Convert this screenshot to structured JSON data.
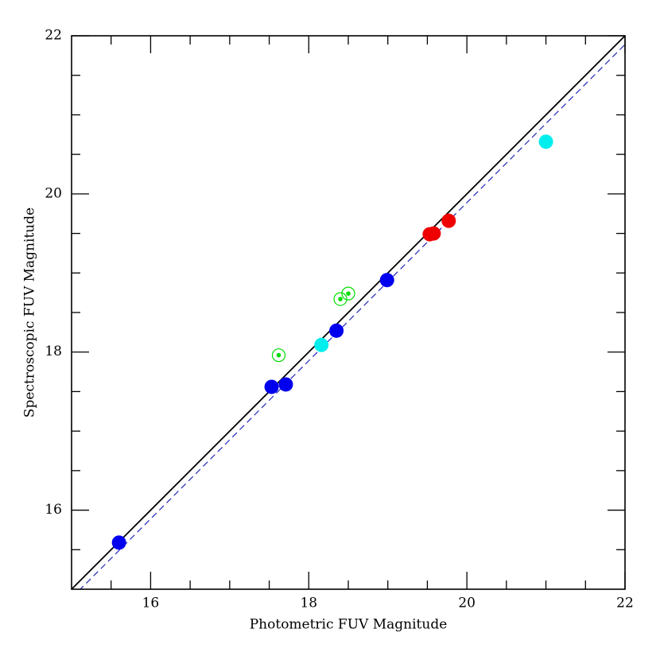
{
  "chart_data": {
    "type": "scatter",
    "x_label": "Photometric FUV Magnitude",
    "y_label": "Spectroscopic FUV Magnitude",
    "xlim": [
      15,
      22
    ],
    "ylim": [
      15,
      22
    ],
    "xticks": [
      16,
      18,
      20,
      22
    ],
    "yticks": [
      16,
      18,
      20,
      22
    ],
    "xminorticks": [
      15.5,
      16.5,
      17,
      17.5,
      18.5,
      19,
      19.5,
      20.5,
      21,
      21.5
    ],
    "yminorticks": [
      15.5,
      16.5,
      17,
      17.5,
      18.5,
      19,
      19.5,
      20.5,
      21,
      21.5
    ],
    "reference_lines": [
      {
        "offset": 0,
        "color": "#000000",
        "dashed": false
      },
      {
        "offset": -0.11,
        "color": "#2222bb",
        "dashed": true
      }
    ],
    "series": [
      {
        "color": "#0000ee",
        "style": "filled",
        "x": [
          15.6,
          17.53,
          17.71,
          18.35,
          18.99
        ],
        "values": [
          15.59,
          17.56,
          17.59,
          18.27,
          18.91
        ]
      },
      {
        "color": "#00eeee",
        "style": "filled",
        "x": [
          18.16,
          21.0
        ],
        "values": [
          18.09,
          20.66
        ]
      },
      {
        "color": "#ee0000",
        "style": "filled",
        "x": [
          19.53,
          19.58,
          19.77
        ],
        "values": [
          19.49,
          19.5,
          19.66
        ]
      },
      {
        "color": "#00dd00",
        "style": "open-dot",
        "x": [
          17.62,
          18.4,
          18.5
        ],
        "values": [
          17.96,
          18.67,
          18.74
        ]
      }
    ]
  }
}
